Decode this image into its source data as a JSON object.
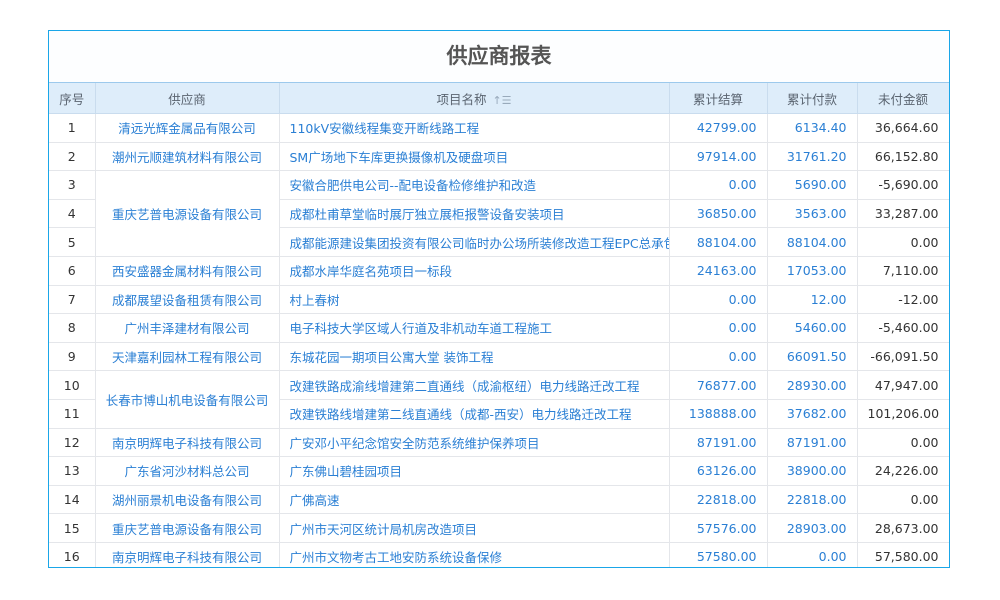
{
  "title": "供应商报表",
  "colors": {
    "border": "#1aa6e8",
    "header_bg": "#deedfa",
    "link": "#2a7fd4"
  },
  "columns": {
    "index": "序号",
    "supplier": "供应商",
    "project": "项目名称",
    "settled": "累计结算",
    "paid": "累计付款",
    "unpaid": "未付金额",
    "sort_icon": "sort-ascending-icon"
  },
  "rows": [
    {
      "index": "1",
      "supplier": "清远光辉金属品有限公司",
      "span": 1,
      "project": "110kV安徽线程集变开断线路工程",
      "settled": "42799.00",
      "paid": "6134.40",
      "unpaid": "36,664.60"
    },
    {
      "index": "2",
      "supplier": "潮州元顺建筑材料有限公司",
      "span": 1,
      "project": "SM广场地下车库更换摄像机及硬盘项目",
      "settled": "97914.00",
      "paid": "31761.20",
      "unpaid": "66,152.80"
    },
    {
      "index": "3",
      "supplier": "重庆艺普电源设备有限公司",
      "span": 3,
      "project": "安徽合肥供电公司--配电设备检修维护和改造",
      "settled": "0.00",
      "paid": "5690.00",
      "unpaid": "-5,690.00"
    },
    {
      "index": "4",
      "supplier": null,
      "span": 0,
      "project": "成都杜甫草堂临时展厅独立展柜报警设备安装项目",
      "settled": "36850.00",
      "paid": "3563.00",
      "unpaid": "33,287.00"
    },
    {
      "index": "5",
      "supplier": null,
      "span": 0,
      "project": "成都能源建设集团投资有限公司临时办公场所装修改造工程EPC总承包",
      "settled": "88104.00",
      "paid": "88104.00",
      "unpaid": "0.00"
    },
    {
      "index": "6",
      "supplier": "西安盛器金属材料有限公司",
      "span": 1,
      "project": "成都水岸华庭名苑项目一标段",
      "settled": "24163.00",
      "paid": "17053.00",
      "unpaid": "7,110.00"
    },
    {
      "index": "7",
      "supplier": "成都展望设备租赁有限公司",
      "span": 1,
      "project": "村上春树",
      "settled": "0.00",
      "paid": "12.00",
      "unpaid": "-12.00"
    },
    {
      "index": "8",
      "supplier": "广州丰泽建材有限公司",
      "span": 1,
      "project": "电子科技大学区域人行道及非机动车道工程施工",
      "settled": "0.00",
      "paid": "5460.00",
      "unpaid": "-5,460.00"
    },
    {
      "index": "9",
      "supplier": "天津嘉利园林工程有限公司",
      "span": 1,
      "project": "东城花园一期项目公寓大堂 装饰工程",
      "settled": "0.00",
      "paid": "66091.50",
      "unpaid": "-66,091.50"
    },
    {
      "index": "10",
      "supplier": "长春市博山机电设备有限公司",
      "span": 2,
      "project": "改建铁路成渝线增建第二直通线（成渝枢纽）电力线路迁改工程",
      "settled": "76877.00",
      "paid": "28930.00",
      "unpaid": "47,947.00"
    },
    {
      "index": "11",
      "supplier": null,
      "span": 0,
      "project": "改建铁路线增建第二线直通线（成都-西安）电力线路迁改工程",
      "settled": "138888.00",
      "paid": "37682.00",
      "unpaid": "101,206.00"
    },
    {
      "index": "12",
      "supplier": "南京明辉电子科技有限公司",
      "span": 1,
      "project": "广安邓小平纪念馆安全防范系统维护保养项目",
      "settled": "87191.00",
      "paid": "87191.00",
      "unpaid": "0.00"
    },
    {
      "index": "13",
      "supplier": "广东省河沙材料总公司",
      "span": 1,
      "project": "广东佛山碧桂园项目",
      "settled": "63126.00",
      "paid": "38900.00",
      "unpaid": "24,226.00"
    },
    {
      "index": "14",
      "supplier": "湖州丽景机电设备有限公司",
      "span": 1,
      "project": "广佛高速",
      "settled": "22818.00",
      "paid": "22818.00",
      "unpaid": "0.00"
    },
    {
      "index": "15",
      "supplier": "重庆艺普电源设备有限公司",
      "span": 1,
      "project": "广州市天河区统计局机房改造项目",
      "settled": "57576.00",
      "paid": "28903.00",
      "unpaid": "28,673.00"
    },
    {
      "index": "16",
      "supplier": "南京明辉电子科技有限公司",
      "span": 1,
      "project": "广州市文物考古工地安防系统设备保修",
      "settled": "57580.00",
      "paid": "0.00",
      "unpaid": "57,580.00"
    }
  ]
}
